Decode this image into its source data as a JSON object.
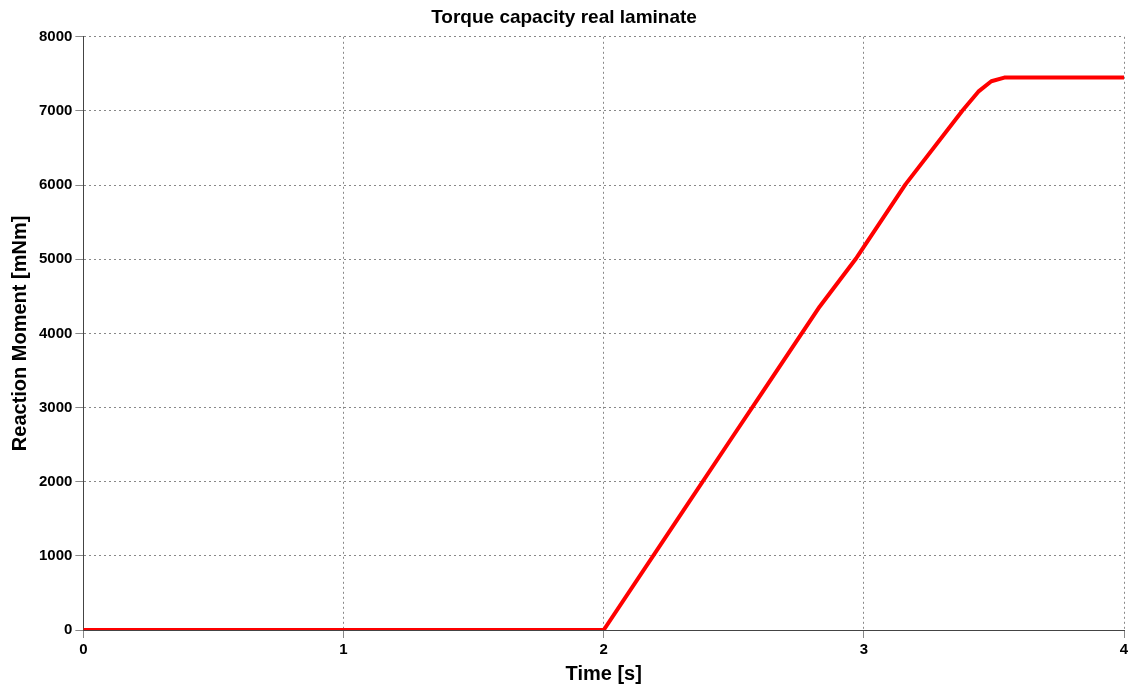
{
  "chart_data": {
    "type": "line",
    "title": "Torque capacity real laminate",
    "xlabel": "Time [s]",
    "ylabel": "Reaction Moment [mNm]",
    "x": [
      0,
      2,
      2.5,
      2.83,
      2.97,
      3.16,
      3.38,
      3.44,
      3.49,
      3.54,
      4
    ],
    "series": [
      {
        "color": "#ff0000",
        "values": [
          0,
          0,
          2630,
          4360,
          5010,
          6010,
          7010,
          7260,
          7400,
          7450,
          7450
        ]
      }
    ],
    "xlim": [
      0,
      4
    ],
    "xticks": [
      0,
      1,
      2,
      3,
      4
    ],
    "ylim": [
      0,
      8000
    ],
    "yticks": [
      0,
      1000,
      2000,
      3000,
      4000,
      5000,
      6000,
      7000,
      8000
    ],
    "grid": true,
    "legend": false,
    "marker": "none",
    "line_style": "solid"
  }
}
